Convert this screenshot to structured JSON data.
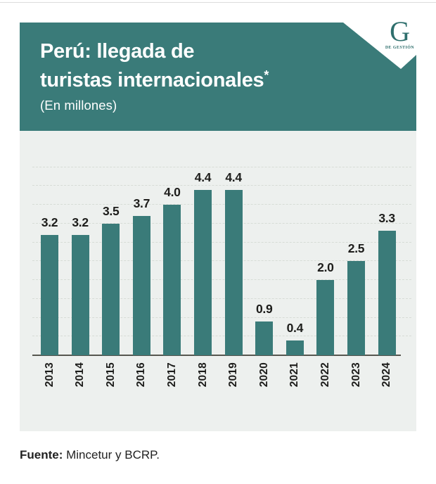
{
  "header": {
    "title_line1": "Perú: llegada de",
    "title_line2": "turistas internacionales",
    "asterisk": "*",
    "subtitle": "(En millones)",
    "logo": {
      "letter": "G",
      "caption": "DE GESTIÓN"
    }
  },
  "chart_data": {
    "type": "bar",
    "title": "Perú: llegada de turistas internacionales*",
    "subtitle_units": "(En millones)",
    "categories": [
      "2013",
      "2014",
      "2015",
      "2016",
      "2017",
      "2018",
      "2019",
      "2020",
      "2021",
      "2022",
      "2023",
      "2024"
    ],
    "values": [
      3.2,
      3.2,
      3.5,
      3.7,
      4.0,
      4.4,
      4.4,
      0.9,
      0.4,
      2.0,
      2.5,
      3.3
    ],
    "value_labels": [
      "3.2",
      "3.2",
      "3.5",
      "3.7",
      "4.0",
      "4.4",
      "4.4",
      "0.9",
      "0.4",
      "2.0",
      "2.5",
      "3.3"
    ],
    "xlabel": "",
    "ylabel": "",
    "ylim": [
      0,
      5
    ],
    "gridline_step": 0.5,
    "grid": true,
    "legend": "none",
    "bar_color": "#3a7b79"
  },
  "colors": {
    "banner_teal": "#3a7b79",
    "panel_background": "#edf0ee",
    "gridline": "#d7dcd6",
    "axis": "#56564f",
    "label_text": "#1d1d1b",
    "logo_teal": "#2f6f6d"
  },
  "footer": {
    "source_label": "Fuente:",
    "source_text": " Mincetur y BCRP."
  }
}
